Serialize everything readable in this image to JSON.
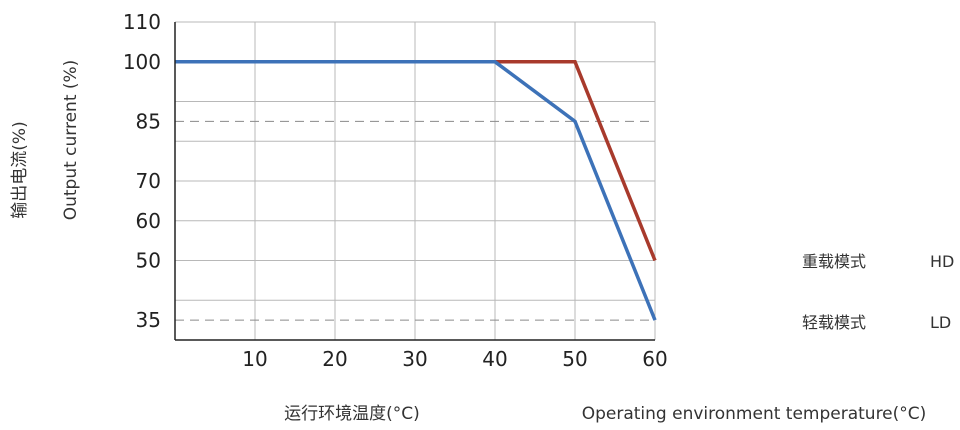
{
  "chart_data": {
    "type": "line",
    "title": "",
    "x_title_cn": "运行环境温度(°C)",
    "x_title_en": "Operating environment temperature(°C)",
    "y_title_cn": "输出电流(%)",
    "y_title_en": "Output current (%)",
    "xlim": [
      0,
      60
    ],
    "ylim": [
      30,
      110
    ],
    "x_ticks": [
      10,
      20,
      30,
      40,
      50,
      60
    ],
    "y_ticks": [
      110,
      100,
      85,
      70,
      60,
      50,
      35
    ],
    "y_grid": [
      110,
      100,
      90,
      80,
      70,
      60,
      50,
      40
    ],
    "x_grid": [
      0,
      10,
      20,
      30,
      40,
      50,
      60
    ],
    "dashed_refs": [
      85,
      35
    ],
    "grid": true,
    "legend": [
      {
        "cn": "重载模式",
        "en": "HD"
      },
      {
        "cn": "轻载模式",
        "en": "LD"
      }
    ],
    "series": [
      {
        "color": "#a83a2c",
        "points": [
          [
            0,
            100
          ],
          [
            40,
            100
          ],
          [
            50,
            100
          ],
          [
            60,
            50
          ]
        ]
      },
      {
        "color": "#3d72b8",
        "points": [
          [
            0,
            100
          ],
          [
            40,
            100
          ],
          [
            50,
            85
          ],
          [
            60,
            35
          ]
        ]
      }
    ]
  }
}
